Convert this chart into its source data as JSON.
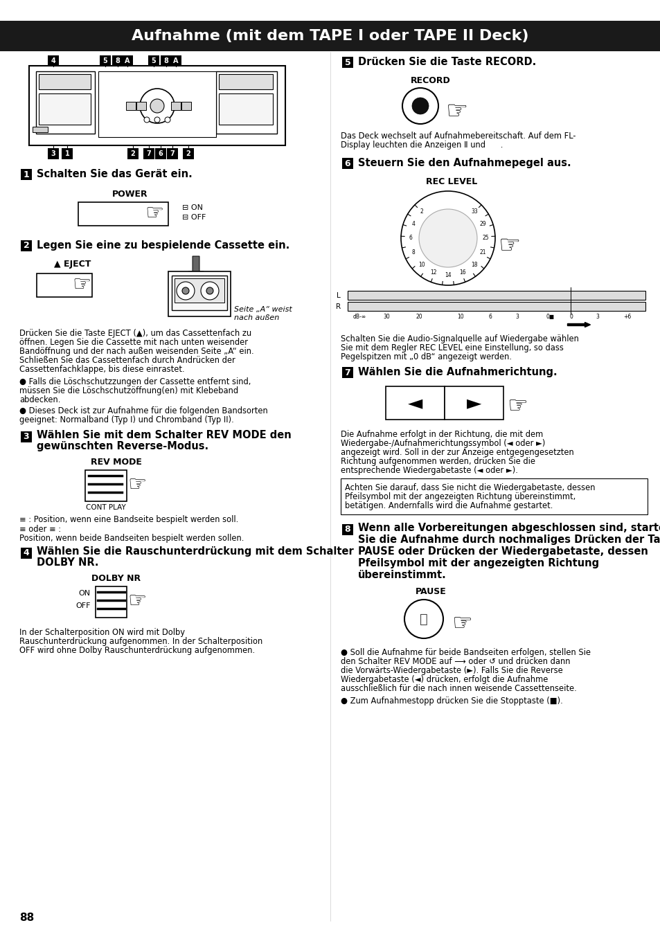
{
  "title": "Aufnahme (mit dem TAPE I oder TAPE II Deck)",
  "title_bg": "#1a1a1a",
  "title_color": "#ffffff",
  "page_number": "88",
  "bg_color": "#ffffff",
  "left_column": {
    "step1_text": "Schalten Sie das Gerät ein.",
    "power_label": "POWER",
    "step2_text": "Legen Sie eine zu bespielende Cassette ein.",
    "eject_label": "▲ EJECT",
    "seite_text": "Seite „A“ weist\nnach außen",
    "para1": "Drücken Sie die Taste EJECT (▲), um das Cassettenfach zu öffnen. Legen Sie die Cassette mit nach unten weisender Bandöffnung und der nach außen weisenden Seite „A“ ein. Schließen Sie das Cassettenfach durch Andrücken der Cassettenfachklappe, bis diese einrastet.",
    "bullet1": "●  Falls die Löschschutzzungen der Cassette entfernt sind, müssen Sie die Löschschutzöffnung(en) mit Klebeband abdecken.",
    "bullet2": "●  Dieses Deck ist zur Aufnahme für die folgenden Bandsorten geeignet: Normalband (Typ I) und Chromband (Typ II).",
    "step3_text": "Wählen Sie mit dem Schalter REV MODE den gewünschten Reverse-Modus.",
    "rev_mode_label": "REV MODE",
    "cont_play_label": "CONT PLAY",
    "rev_pos1": "≡ : Position, wenn eine Bandseite bespielt werden soll.",
    "rev_pos2": "≡ oder ≡ :",
    "rev_pos3": "Position, wenn beide Bandseiten bespielt werden sollen.",
    "step4_text": "Wählen Sie die Rauschunterd rückung mit dem Schalter DOLBY NR.",
    "step4_text_line1": "Wählen Sie die Rauschunterdrückung mit dem Schalter",
    "step4_text_line2": "DOLBY NR.",
    "dolby_label": "DOLBY NR",
    "dolby_on": "ON",
    "dolby_off": "OFF",
    "dolby_desc": "In der Schalterposition ON wird mit Dolby Rauschunterdrückung aufgenommen. In der Schalterposition OFF wird ohne Dolby Rauschunterdrückung aufgenommen."
  },
  "right_column": {
    "step5_text": "Drücken Sie die Taste RECORD.",
    "record_label": "RECORD",
    "record_desc_line1": "Das Deck wechselt auf Aufnahmebereitschaft. Auf dem FL-",
    "record_desc_line2": "Display leuchten die Anzeigen Ⅱ und      .",
    "step6_text": "Steuern Sie den Aufnahmepegel aus.",
    "rec_level_label": "REC LEVEL",
    "level_desc": "Schalten Sie die Audio-Signalquelle auf Wiedergabe wählen Sie mit dem Regler REC LEVEL eine Einstellung, so dass Pegelspitzen mit „0 dB“ angezeigt werden.",
    "step7_text": "Wählen Sie die Aufnahmerichtung.",
    "dir_desc": "Die Aufnahme erfolgt in der Richtung, die mit dem Wiedergabe-/Aufnahmerichtungssymbol (◄ oder ►) angezeigt wird. Soll in der zur Anzeige entgegengesetzten Richtung aufgenommen werden, drücken Sie die entsprechende Wiedergabetaste (◄ oder ►).",
    "note_text": "Achten Sie darauf, dass Sie nicht die Wiedergabetaste, dessen Pfeilsymbol mit der angezeigten Richtung übereinstimmt, betätigen. Andernfalls wird die Aufnahme gestartet.",
    "step8_text_line1": "Wenn alle Vorbereitungen abgeschlossen sind, starten",
    "step8_text_line2": "Sie die Aufnahme durch nochmaliges Drücken der Taste",
    "step8_text_line3": "PAUSE oder Drücken der Wiedergabetaste, dessen",
    "step8_text_line4": "Pfeilsymbol mit der angezeigten Richtung",
    "step8_text_line5": "übereinstimmt.",
    "pause_label": "PAUSE",
    "bullet3_line1": "● Soll die Aufnahme für beide Bandseiten erfolgen, stellen Sie",
    "bullet3_line2": "den Schalter REV MODE auf ⬌ oder ↺ und drücken dann",
    "bullet3_line3": "die Vorwärts-Wiedergabetaste (►). Falls Sie die Reverse",
    "bullet3_line4": "Wiedergabetaste (◄) drücken, erfolgt die Aufnahme",
    "bullet3_line5": "ausschließlich für die nach innen weisende Cassettenseite.",
    "bullet4": "● Zum Aufnahmestopp drücken Sie die Stopptaste (■)."
  }
}
